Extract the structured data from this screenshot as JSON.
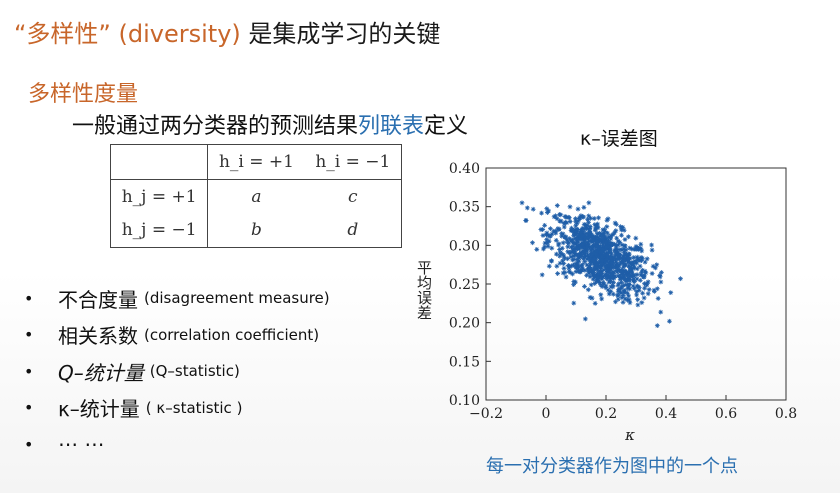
{
  "title": {
    "quoted": "“多样性”",
    "english": "(diversity)",
    "rest": "是集成学习的关键"
  },
  "section_heading": "多样性度量",
  "definition": {
    "prefix": "一般通过两分类器的预测结果",
    "highlight": "列联表",
    "suffix": "定义"
  },
  "table": {
    "col_headers": [
      "h_i = +1",
      "h_i = −1"
    ],
    "rows": [
      {
        "label": "h_j = +1",
        "cells": [
          "a",
          "c"
        ]
      },
      {
        "label": "h_j = −1",
        "cells": [
          "b",
          "d"
        ]
      }
    ]
  },
  "bullets": [
    {
      "main": "不合度量",
      "note": "(disagreement measure)"
    },
    {
      "main": "相关系数",
      "note": "(correlation coefficient)"
    },
    {
      "main": "Q–统计量",
      "note": "(Q–statistic)"
    },
    {
      "main": "κ–统计量",
      "note": "( κ–statistic )"
    },
    {
      "main": "⋯ ⋯",
      "note": ""
    }
  ],
  "footer_note": "每一对分类器作为图中的一个点",
  "colors": {
    "accent_orange": "#c8662a",
    "accent_blue": "#2a6fb0",
    "point_color": "#1f5ea8"
  },
  "chart_data": {
    "type": "scatter",
    "title": "κ–误差图",
    "xlabel": "κ",
    "ylabel": "平均误差",
    "xlim": [
      -0.2,
      0.8
    ],
    "ylim": [
      0.1,
      0.4
    ],
    "x_ticks": [
      "−0.2",
      "0",
      "0.2",
      "0.4",
      "0.6",
      "0.8"
    ],
    "y_ticks": [
      "0.10",
      "0.15",
      "0.20",
      "0.25",
      "0.30",
      "0.35",
      "0.40"
    ],
    "marker": "asterisk",
    "grid": false,
    "point_cloud": {
      "count": 900,
      "center": [
        0.18,
        0.285
      ],
      "x_range": [
        -0.08,
        0.52
      ],
      "y_range": [
        0.19,
        0.355
      ],
      "trend": "negative correlation between κ and mean error"
    }
  }
}
